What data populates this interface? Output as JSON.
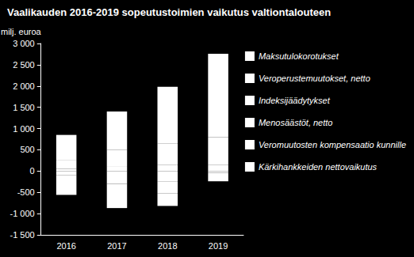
{
  "chart_data": {
    "type": "bar",
    "title": "Vaalikauden 2016-2019 sopeutustoimien vaikutus valtiontalouteen",
    "ylabel": "milj. euroa",
    "categories": [
      "2016",
      "2017",
      "2018",
      "2019"
    ],
    "stacked": true,
    "legend": "right",
    "grid": false,
    "series": [
      {
        "name": "Maksutulokorotukset",
        "color": "#ffffff",
        "values": [
          50,
          100,
          150,
          150
        ]
      },
      {
        "name": "Veroperustemuutokset, netto",
        "color": "#ffffff",
        "values": [
          -100,
          -300,
          -250,
          -40
        ]
      },
      {
        "name": "Indeksijäädytykset",
        "color": "#ffffff",
        "values": [
          200,
          400,
          500,
          650
        ]
      },
      {
        "name": "Menosäästöt, netto",
        "color": "#ffffff",
        "values": [
          600,
          900,
          1330,
          1960
        ]
      },
      {
        "name": "Veromuutosten kompensaatio kunnille",
        "color": "#ffffff",
        "values": [
          -210,
          -270,
          -270,
          -200
        ]
      },
      {
        "name": "Kärkihankkeiden nettovaikutus",
        "color": "#ffffff",
        "values": [
          -250,
          -300,
          -300,
          0
        ]
      }
    ],
    "ylim": [
      -1500,
      3000
    ],
    "yticks": [
      {
        "value": -1500,
        "label": "-1 500"
      },
      {
        "value": -1000,
        "label": "-1 000"
      },
      {
        "value": -500,
        "label": "-500"
      },
      0,
      500,
      {
        "value": 1000,
        "label": "1 000"
      },
      {
        "value": 1500,
        "label": "1 500"
      },
      {
        "value": 2000,
        "label": "2 000"
      },
      {
        "value": 2500,
        "label": "2 500"
      },
      {
        "value": 3000,
        "label": "3 000"
      }
    ]
  }
}
